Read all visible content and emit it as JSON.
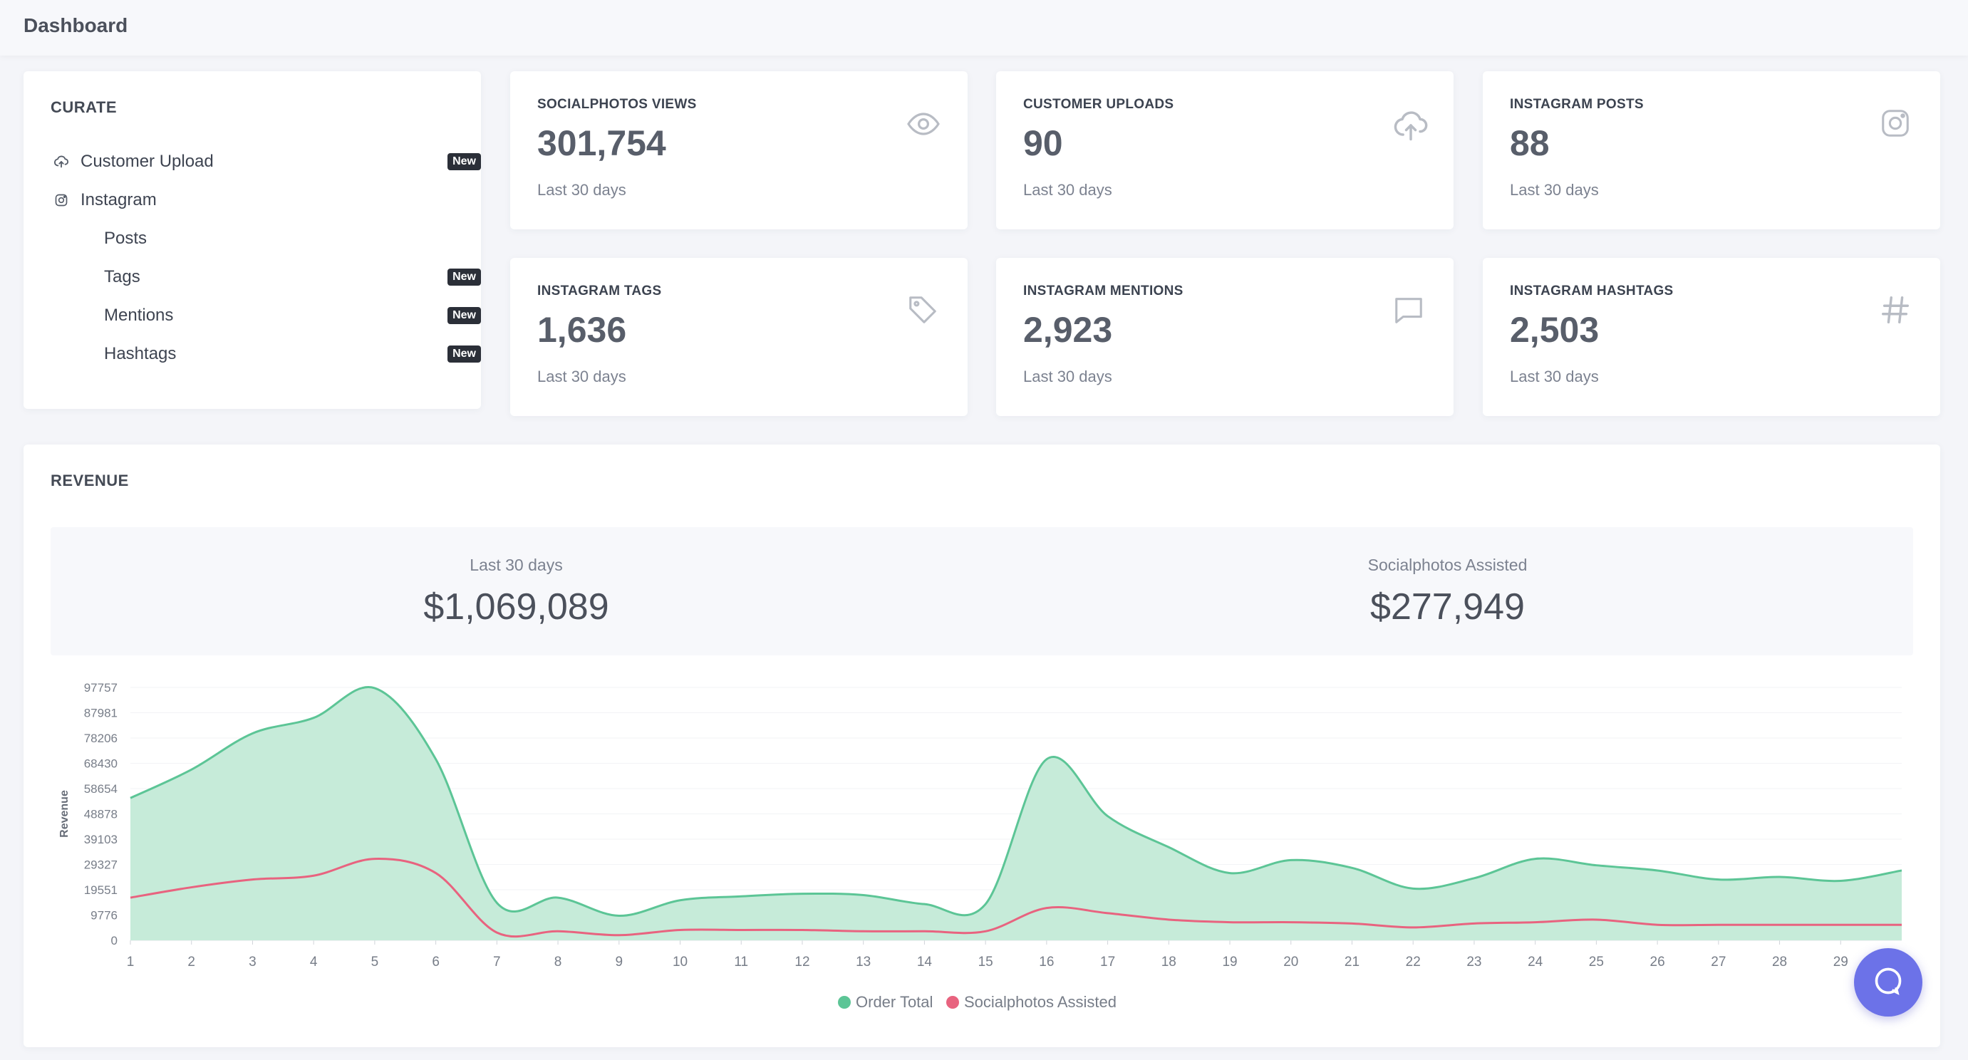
{
  "header": {
    "title": "Dashboard"
  },
  "curate": {
    "title": "CURATE",
    "items": [
      {
        "label": "Customer Upload",
        "icon": "cloud-upload-icon",
        "badge": "New"
      },
      {
        "label": "Instagram",
        "icon": "instagram-icon",
        "badge": ""
      },
      {
        "label": "Posts",
        "badge": ""
      },
      {
        "label": "Tags",
        "badge": "New"
      },
      {
        "label": "Mentions",
        "badge": "New"
      },
      {
        "label": "Hashtags",
        "badge": "New"
      }
    ]
  },
  "stats": [
    {
      "label": "SOCIALPHOTOS VIEWS",
      "value": "301,754",
      "sub": "Last 30 days",
      "icon": "eye-icon"
    },
    {
      "label": "CUSTOMER UPLOADS",
      "value": "90",
      "sub": "Last 30 days",
      "icon": "cloud-upload-icon"
    },
    {
      "label": "INSTAGRAM POSTS",
      "value": "88",
      "sub": "Last 30 days",
      "icon": "instagram-icon"
    },
    {
      "label": "INSTAGRAM TAGS",
      "value": "1,636",
      "sub": "Last 30 days",
      "icon": "tag-icon"
    },
    {
      "label": "INSTAGRAM MENTIONS",
      "value": "2,923",
      "sub": "Last 30 days",
      "icon": "chat-bubble-icon"
    },
    {
      "label": "INSTAGRAM HASHTAGS",
      "value": "2,503",
      "sub": "Last 30 days",
      "icon": "hashtag-icon"
    }
  ],
  "revenue": {
    "title": "REVENUE",
    "summary": [
      {
        "label": "Last 30 days",
        "value": "$1,069,089"
      },
      {
        "label": "Socialphotos Assisted",
        "value": "$277,949"
      }
    ]
  },
  "chart_data": {
    "type": "area",
    "ylabel": "Revenue",
    "ylim": [
      0,
      97757
    ],
    "yticks": [
      0,
      9776,
      19551,
      29327,
      39103,
      48878,
      58654,
      68430,
      78206,
      87981,
      97757
    ],
    "x": [
      1,
      2,
      3,
      4,
      5,
      6,
      7,
      8,
      9,
      10,
      11,
      12,
      13,
      14,
      15,
      16,
      17,
      18,
      19,
      20,
      21,
      22,
      23,
      24,
      25,
      26,
      27,
      28,
      29,
      30
    ],
    "xtick_labels": [
      "1",
      "2",
      "3",
      "4",
      "5",
      "6",
      "7",
      "8",
      "9",
      "10",
      "11",
      "12",
      "13",
      "14",
      "15",
      "16",
      "17",
      "18",
      "19",
      "20",
      "21",
      "22",
      "23",
      "24",
      "25",
      "26",
      "27",
      "28",
      "29"
    ],
    "series": [
      {
        "name": "Order Total",
        "color": "#5cc596",
        "fill": "#c6ebd9",
        "values": [
          55000,
          66000,
          80000,
          86000,
          97500,
          70000,
          14500,
          16500,
          9500,
          15500,
          17000,
          18000,
          17500,
          14000,
          14000,
          70000,
          48000,
          36000,
          26000,
          31000,
          28000,
          20000,
          24000,
          31500,
          29000,
          27000,
          23500,
          24500,
          23000,
          27000
        ]
      },
      {
        "name": "Socialphotos Assisted",
        "color": "#e8637f",
        "values": [
          16500,
          20500,
          23500,
          25000,
          31500,
          26000,
          3000,
          3500,
          2000,
          4000,
          4000,
          4000,
          3500,
          3500,
          3500,
          12500,
          10500,
          8000,
          7000,
          7000,
          6500,
          5000,
          6500,
          7000,
          8000,
          6000,
          6000,
          6000,
          6000,
          6000
        ]
      }
    ],
    "legend_position": "bottom"
  },
  "help": {
    "icon": "chat-help-icon"
  }
}
